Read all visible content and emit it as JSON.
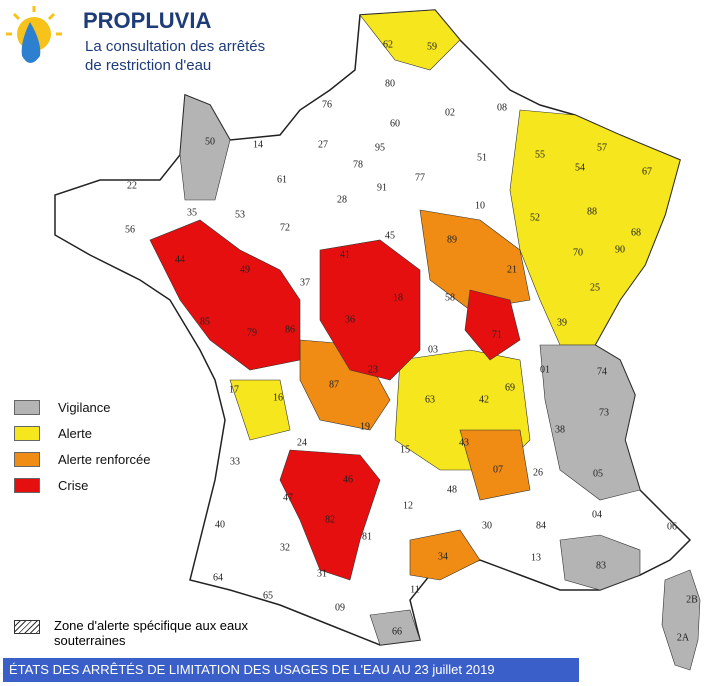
{
  "header": {
    "title": "PROPLUVIA",
    "subtitle": [
      "La consultation des arrêtés",
      "de restriction d'eau"
    ]
  },
  "legend": [
    {
      "name": "Vigilance",
      "color": "#b4b4b4"
    },
    {
      "name": "Alerte",
      "color": "#f5e61e"
    },
    {
      "name": "Alerte renforcée",
      "color": "#f08c14"
    },
    {
      "name": "Crise",
      "color": "#e60f0f"
    }
  ],
  "hatch_legend": "Zone d'alerte spécifique aux eaux souterraines",
  "footer": "ÉTATS DES ARRÊTÉS DE LIMITATION DES USAGES DE L'EAU AU 23 juillet 2019",
  "departements": [
    "62",
    "59",
    "80",
    "02",
    "08",
    "76",
    "60",
    "50",
    "14",
    "27",
    "95",
    "51",
    "55",
    "57",
    "54",
    "67",
    "22",
    "61",
    "78",
    "91",
    "77",
    "10",
    "52",
    "88",
    "68",
    "56",
    "35",
    "53",
    "72",
    "28",
    "45",
    "89",
    "21",
    "70",
    "90",
    "25",
    "49",
    "37",
    "41",
    "18",
    "58",
    "39",
    "44",
    "85",
    "79",
    "86",
    "36",
    "71",
    "03",
    "01",
    "74",
    "17",
    "16",
    "87",
    "23",
    "69",
    "73",
    "38",
    "63",
    "42",
    "19",
    "24",
    "15",
    "43",
    "33",
    "46",
    "07",
    "26",
    "05",
    "47",
    "12",
    "48",
    "82",
    "81",
    "30",
    "84",
    "04",
    "06",
    "40",
    "32",
    "34",
    "13",
    "83",
    "64",
    "31",
    "65",
    "09",
    "11",
    "66",
    "2B",
    "2A"
  ]
}
